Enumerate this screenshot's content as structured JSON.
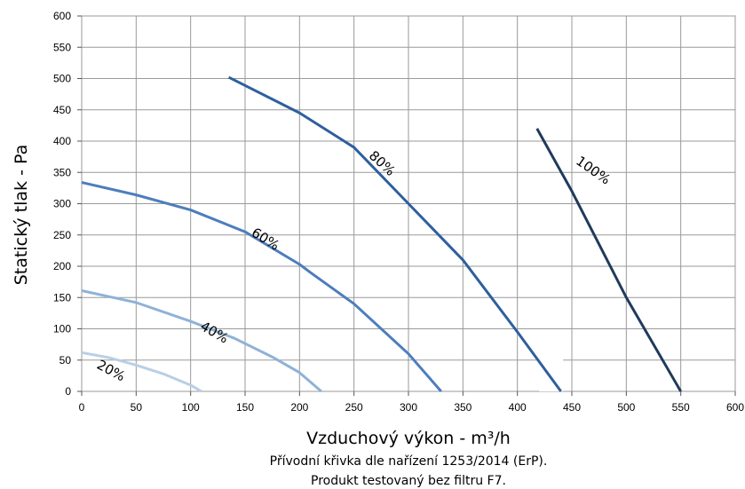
{
  "chart_data": {
    "type": "line",
    "xlabel": "Vzduchový výkon - m³/h",
    "ylabel": "Statický tlak - Pa",
    "captions": [
      "Přívodní křivka dle nařízení 1253/2014 (ErP).",
      "Produkt testovaný bez filtru F7."
    ],
    "xlim": [
      0,
      600
    ],
    "ylim": [
      0,
      600
    ],
    "xticks": [
      "0",
      "50",
      "100",
      "150",
      "200",
      "250",
      "300",
      "350",
      "400",
      "450",
      "500",
      "550",
      "600"
    ],
    "yticks": [
      "0",
      "50",
      "100",
      "150",
      "200",
      "250",
      "300",
      "350",
      "400",
      "450",
      "500",
      "550",
      "600"
    ],
    "grid": true,
    "series": [
      {
        "name": "20%",
        "color": "#b8cfe6",
        "x": [
          0,
          25,
          50,
          75,
          100,
          110
        ],
        "y": [
          62,
          54,
          42,
          28,
          10,
          0
        ]
      },
      {
        "name": "40%",
        "color": "#8fb2d8",
        "x": [
          0,
          50,
          100,
          140,
          175,
          200,
          220
        ],
        "y": [
          161,
          142,
          112,
          85,
          55,
          30,
          0
        ]
      },
      {
        "name": "60%",
        "color": "#4d7dbd",
        "x": [
          0,
          50,
          100,
          150,
          200,
          210,
          250,
          300,
          330
        ],
        "y": [
          334,
          314,
          290,
          255,
          203,
          190,
          140,
          60,
          0
        ]
      },
      {
        "name": "80%",
        "color": "#2e5f9e",
        "x": [
          135,
          200,
          250,
          300,
          350,
          400,
          440
        ],
        "y": [
          502,
          445,
          390,
          300,
          210,
          95,
          0
        ]
      },
      {
        "name": "100%",
        "color": "#1f3a5c",
        "x": [
          418,
          450,
          500,
          550
        ],
        "y": [
          420,
          320,
          150,
          0
        ]
      }
    ]
  }
}
